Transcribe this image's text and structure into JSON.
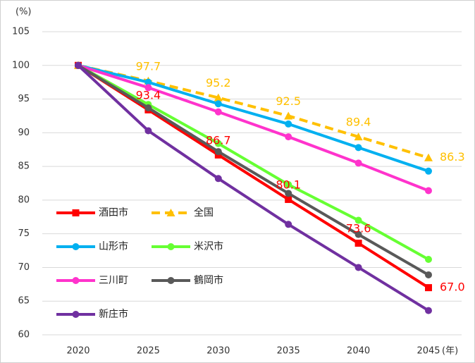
{
  "chart_data": {
    "type": "line",
    "y_unit_label": "(%)",
    "x_unit_label": "(年)",
    "categories": [
      "2020",
      "2025",
      "2030",
      "2035",
      "2040",
      "2045"
    ],
    "ylim": [
      60,
      105
    ],
    "yticks": [
      60,
      65,
      70,
      75,
      80,
      85,
      90,
      95,
      100,
      105
    ],
    "grid": true,
    "legend_position": "left",
    "series": [
      {
        "name": "酒田市",
        "color": "#ff0000",
        "marker": "square",
        "dash": "solid",
        "values": [
          100,
          93.4,
          86.7,
          80.1,
          73.6,
          67.0
        ],
        "value_labels": [
          null,
          "93.4",
          "86.7",
          "80.1",
          "73.6",
          "67.0"
        ]
      },
      {
        "name": "全国",
        "color": "#ffc000",
        "marker": "triangle",
        "dash": "dashed",
        "values": [
          100,
          97.7,
          95.2,
          92.5,
          89.4,
          86.3
        ],
        "value_labels": [
          null,
          "97.7",
          "95.2",
          "92.5",
          "89.4",
          "86.3"
        ]
      },
      {
        "name": "山形市",
        "color": "#00b0f0",
        "marker": "circle",
        "dash": "solid",
        "values": [
          100,
          97.5,
          94.3,
          91.3,
          87.8,
          84.3
        ]
      },
      {
        "name": "米沢市",
        "color": "#66ff33",
        "marker": "circle",
        "dash": "solid",
        "values": [
          100,
          94.2,
          88.4,
          82.3,
          77.0,
          71.2
        ]
      },
      {
        "name": "三川町",
        "color": "#ff33cc",
        "marker": "circle",
        "dash": "solid",
        "values": [
          100,
          96.7,
          93.1,
          89.4,
          85.5,
          81.4
        ]
      },
      {
        "name": "鶴岡市",
        "color": "#595959",
        "marker": "circle",
        "dash": "solid",
        "values": [
          100,
          93.7,
          87.2,
          81.0,
          74.9,
          68.9
        ]
      },
      {
        "name": "新庄市",
        "color": "#7030a0",
        "marker": "circle",
        "dash": "solid",
        "values": [
          100,
          90.3,
          83.2,
          76.4,
          70.0,
          63.6
        ]
      }
    ]
  }
}
